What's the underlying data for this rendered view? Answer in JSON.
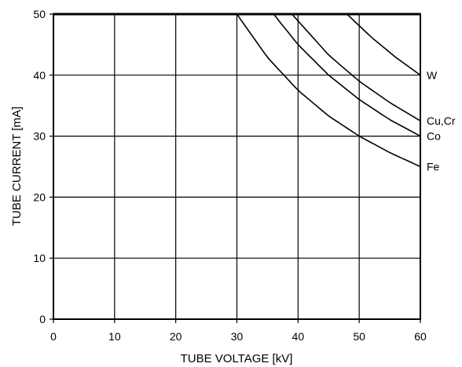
{
  "chart_data": {
    "type": "line",
    "title": "",
    "xlabel": "TUBE VOLTAGE [kV]",
    "ylabel": "TUBE CURRENT  [mA]",
    "xlim": [
      0,
      60
    ],
    "ylim": [
      0,
      50
    ],
    "xticks": [
      0,
      10,
      20,
      30,
      40,
      50,
      60
    ],
    "yticks": [
      0,
      10,
      20,
      30,
      40,
      50
    ],
    "grid": true,
    "legend": "none",
    "series_labels_position": "right-edge",
    "max_current_line": 50,
    "series": [
      {
        "name": "Fe",
        "points": [
          [
            30,
            50
          ],
          [
            35,
            42.9
          ],
          [
            40,
            37.5
          ],
          [
            45,
            33.3
          ],
          [
            50,
            30
          ],
          [
            55,
            27.3
          ],
          [
            60,
            25
          ]
        ]
      },
      {
        "name": "Co",
        "points": [
          [
            36,
            50
          ],
          [
            40,
            45
          ],
          [
            45,
            40
          ],
          [
            50,
            36
          ],
          [
            55,
            32.7
          ],
          [
            60,
            30
          ]
        ]
      },
      {
        "name": "Cu,Cr",
        "points": [
          [
            39,
            50
          ],
          [
            45,
            43.3
          ],
          [
            50,
            39
          ],
          [
            55,
            35.5
          ],
          [
            60,
            32.5
          ]
        ]
      },
      {
        "name": "W",
        "points": [
          [
            48,
            50
          ],
          [
            52,
            46.2
          ],
          [
            56,
            42.9
          ],
          [
            60,
            40
          ]
        ]
      }
    ]
  }
}
